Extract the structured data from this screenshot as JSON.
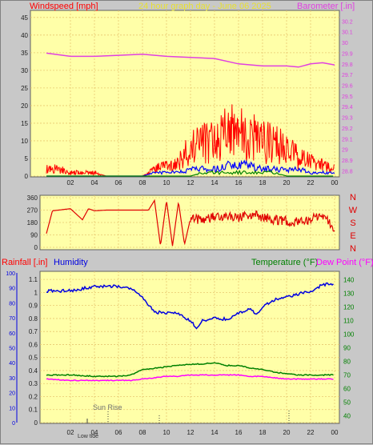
{
  "colors": {
    "background": "#c8c8c8",
    "plot_bg": "#ffffa8",
    "grid": "#e8c870",
    "windspeed": "#ff0000",
    "gust": "#ff0000",
    "wind_avg": "#0000ff",
    "wind_low": "#008000",
    "barometer": "#e040e0",
    "direction": "#e00000",
    "humidity": "#0000e0",
    "temperature": "#008000",
    "dew_point": "#ff00ff",
    "rain": "#0000ff",
    "title": "#e8e030"
  },
  "header": {
    "windspeed_label": "Windspeed [mph]",
    "title": "24 hour graph day - June 06 2025",
    "barometer_label": "Barometer [.in]"
  },
  "compass": [
    "N",
    "W",
    "S",
    "E",
    "N"
  ],
  "bottom_labels": {
    "rainfall": "Rainfall [.in]",
    "humidity": "Humidity",
    "temperature": "Temperature (°F)",
    "dew_point": "Dew Point (°F)",
    "sun_rise": "Sun Rise",
    "low_tide": "Low tide"
  },
  "chart_data": [
    {
      "type": "line",
      "x_ticks": [
        "02",
        "04",
        "06",
        "08",
        "10",
        "12",
        "14",
        "16",
        "18",
        "20",
        "22",
        "00"
      ],
      "y_left": {
        "label": "Windspeed [mph]",
        "ticks": [
          0,
          5,
          10,
          15,
          20,
          25,
          30,
          35,
          40,
          45
        ],
        "lim": [
          0,
          47
        ]
      },
      "y_right": {
        "label": "Barometer [.in]",
        "ticks": [
          "28.8",
          "28.9",
          "29",
          "29.1",
          "29.2",
          "29.3",
          "29.4",
          "29.5",
          "29.6",
          "29.7",
          "29.8",
          "29.9",
          "30",
          "30.1",
          "30.2"
        ],
        "lim": [
          28.75,
          30.3
        ]
      },
      "series": [
        {
          "name": "Barometer",
          "x": [
            0,
            2,
            4,
            6,
            8,
            10,
            12,
            14,
            16,
            18,
            20,
            21,
            22,
            23,
            24
          ],
          "values": [
            29.9,
            29.87,
            29.87,
            29.88,
            29.89,
            29.87,
            29.86,
            29.85,
            29.8,
            29.78,
            29.78,
            29.77,
            29.8,
            29.81,
            29.79
          ]
        },
        {
          "name": "Gust",
          "x": [
            0,
            1,
            2,
            3,
            4,
            5,
            6,
            7,
            8,
            9,
            10,
            11,
            12,
            13,
            14,
            15,
            16,
            17,
            18,
            19,
            20,
            21,
            22,
            23,
            24
          ],
          "values": [
            2,
            2,
            1,
            1,
            1,
            0,
            0,
            0,
            0,
            2,
            3,
            4,
            8,
            9,
            10,
            12,
            13,
            11,
            10,
            9,
            8,
            5,
            4,
            3,
            2
          ]
        },
        {
          "name": "Average",
          "x": [
            0,
            2,
            4,
            6,
            8,
            9,
            10,
            11,
            12,
            13,
            14,
            15,
            16,
            17,
            18,
            19,
            20,
            21,
            22,
            23,
            24
          ],
          "values": [
            0,
            0,
            0,
            0,
            0,
            1,
            1,
            1,
            2,
            2,
            2,
            3,
            3,
            3,
            2,
            2,
            2,
            2,
            1,
            1,
            1
          ]
        },
        {
          "name": "Low",
          "x": [
            0,
            8,
            9,
            10,
            11,
            12,
            13,
            14,
            15,
            16,
            17,
            18,
            19,
            20,
            21,
            22,
            23,
            24
          ],
          "values": [
            0,
            0,
            0,
            0,
            0,
            0,
            1,
            1,
            1,
            1,
            1,
            1,
            1,
            0,
            0,
            0,
            0,
            0
          ]
        }
      ]
    },
    {
      "type": "line",
      "x_ticks": [
        "02",
        "04",
        "06",
        "08",
        "10",
        "12",
        "14",
        "16",
        "18",
        "20",
        "22",
        "00"
      ],
      "y_left": {
        "ticks": [
          0,
          90,
          180,
          270,
          360
        ],
        "lim": [
          0,
          360
        ]
      },
      "series": [
        {
          "name": "Direction",
          "x": [
            0,
            0.5,
            1,
            2,
            3,
            3.5,
            4,
            5,
            6,
            7,
            8,
            8.5,
            9,
            9.5,
            10,
            10.5,
            11,
            11.5,
            12,
            13,
            14,
            15,
            16,
            17,
            18,
            19,
            20,
            21,
            22,
            23,
            24
          ],
          "values": [
            100,
            265,
            270,
            280,
            200,
            280,
            265,
            270,
            270,
            270,
            270,
            270,
            340,
            10,
            340,
            10,
            330,
            20,
            210,
            200,
            220,
            230,
            210,
            240,
            220,
            200,
            195,
            180,
            200,
            230,
            140
          ]
        }
      ]
    },
    {
      "type": "line",
      "x_ticks": [
        "02",
        "04",
        "06",
        "08",
        "10",
        "12",
        "14",
        "16",
        "18",
        "20",
        "22",
        "00"
      ],
      "y_left_humidity": {
        "ticks": [
          0,
          10,
          20,
          30,
          40,
          50,
          60,
          70,
          80,
          90,
          100
        ],
        "lim": [
          0,
          100
        ]
      },
      "y_left_rain": {
        "ticks": [
          "0",
          "0.1",
          "0.2",
          "0.3",
          "0.4",
          "0.5",
          "0.6",
          "0.7",
          "0.8",
          "0.9",
          "1",
          "1.1"
        ],
        "lim": [
          0,
          1.15
        ]
      },
      "y_right": {
        "ticks": [
          40,
          50,
          60,
          70,
          80,
          90,
          100,
          110,
          120,
          130,
          140
        ],
        "lim": [
          35,
          145
        ]
      },
      "series": [
        {
          "name": "Humidity",
          "x": [
            0,
            2,
            4,
            6,
            7,
            8,
            9,
            10,
            11,
            12,
            12.5,
            13,
            14,
            15,
            16,
            17,
            17.5,
            18,
            19,
            20,
            21,
            22,
            23,
            24
          ],
          "values": [
            88,
            88,
            91,
            91,
            90,
            84,
            74,
            73,
            73,
            68,
            63,
            68,
            70,
            69,
            73,
            76,
            72,
            77,
            82,
            84,
            86,
            88,
            92,
            93
          ]
        },
        {
          "name": "Temperature",
          "x": [
            0,
            2,
            4,
            6,
            7,
            8,
            9,
            10,
            11,
            12,
            13,
            14,
            15,
            16,
            17,
            18,
            19,
            20,
            21,
            22,
            23,
            24
          ],
          "values": [
            70,
            70,
            69,
            69,
            70,
            74,
            75,
            76,
            77,
            78,
            78,
            79,
            77,
            77,
            75,
            74,
            72,
            71,
            70,
            70,
            70,
            70
          ]
        },
        {
          "name": "Dew Point",
          "x": [
            0,
            2,
            4,
            6,
            7,
            8,
            9,
            10,
            11,
            12,
            13,
            14,
            15,
            16,
            17,
            18,
            19,
            20,
            21,
            22,
            23,
            24
          ],
          "values": [
            67,
            66,
            66,
            66,
            66,
            67,
            68,
            69,
            69,
            70,
            70,
            70,
            70,
            70,
            69,
            69,
            68,
            67,
            67,
            67,
            67,
            67
          ]
        }
      ]
    }
  ]
}
